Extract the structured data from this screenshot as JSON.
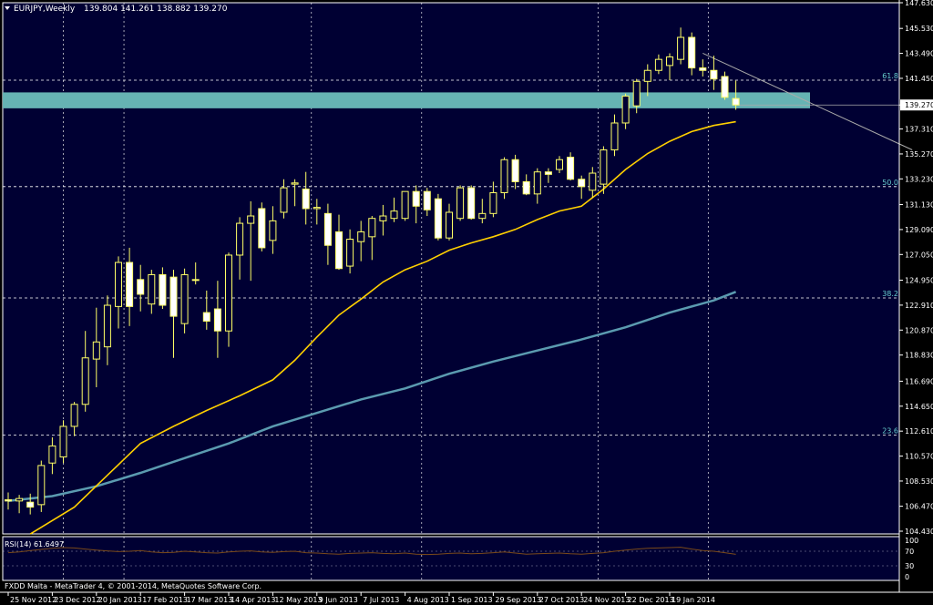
{
  "chart_header": {
    "symbol_tf": "EURJPY,Weekly",
    "ohlc": "139.804 141.261 138.882 139.270"
  },
  "colors": {
    "background": "#000033",
    "frame": "#ffffff",
    "grid": "#ffffff",
    "candle_up": "#000033",
    "candle_down": "#ffffff",
    "candle_outline": "#ffff66",
    "ma_fast": "#ffd000",
    "ma_slow": "#5b9bb0",
    "zone": "#66b3b3",
    "fib_label": "#66cccc",
    "rsi_line": "#7a4a1a",
    "price_tag_bg": "#ffffff"
  },
  "chart_data": {
    "type": "candlestick",
    "symbol": "EURJPY",
    "timeframe": "Weekly",
    "last_price": 139.27,
    "ylim": [
      104.43,
      147.63
    ],
    "y_ticks": [
      "147.630",
      "145.530",
      "143.490",
      "141.450",
      "139.270",
      "137.310",
      "135.270",
      "133.230",
      "131.130",
      "129.090",
      "127.050",
      "124.950",
      "122.910",
      "120.870",
      "118.830",
      "116.690",
      "114.650",
      "112.610",
      "110.570",
      "108.530",
      "106.470",
      "104.430"
    ],
    "x_ticks": [
      "25 Nov 2012",
      "23 Dec 2012",
      "20 Jan 2013",
      "17 Feb 2013",
      "17 Mar 2013",
      "14 Apr 2013",
      "12 May 2013",
      "9 Jun 2013",
      "7 Jul 2013",
      "4 Aug 2013",
      "1 Sep 2013",
      "29 Sep 2013",
      "27 Oct 2013",
      "24 Nov 2013",
      "22 Dec 2013",
      "19 Jan 2014"
    ],
    "candles": [
      {
        "o": 107.0,
        "h": 107.6,
        "l": 106.2,
        "c": 106.9
      },
      {
        "o": 106.9,
        "h": 107.4,
        "l": 105.9,
        "c": 107.1
      },
      {
        "o": 106.8,
        "h": 107.5,
        "l": 105.8,
        "c": 106.4
      },
      {
        "o": 106.6,
        "h": 110.2,
        "l": 106.0,
        "c": 109.8
      },
      {
        "o": 110.0,
        "h": 112.1,
        "l": 109.1,
        "c": 111.4
      },
      {
        "o": 110.5,
        "h": 113.5,
        "l": 110.0,
        "c": 113.0
      },
      {
        "o": 113.0,
        "h": 115.0,
        "l": 112.2,
        "c": 114.8
      },
      {
        "o": 114.8,
        "h": 120.8,
        "l": 114.2,
        "c": 118.6
      },
      {
        "o": 118.5,
        "h": 122.7,
        "l": 116.2,
        "c": 119.9
      },
      {
        "o": 119.5,
        "h": 123.7,
        "l": 118.0,
        "c": 122.9
      },
      {
        "o": 122.8,
        "h": 126.9,
        "l": 121.0,
        "c": 126.4
      },
      {
        "o": 126.4,
        "h": 127.6,
        "l": 121.2,
        "c": 122.8
      },
      {
        "o": 125.0,
        "h": 126.2,
        "l": 122.4,
        "c": 123.8
      },
      {
        "o": 123.0,
        "h": 125.8,
        "l": 122.2,
        "c": 125.4
      },
      {
        "o": 125.4,
        "h": 126.0,
        "l": 122.6,
        "c": 122.9
      },
      {
        "o": 125.2,
        "h": 125.8,
        "l": 118.6,
        "c": 122.0
      },
      {
        "o": 121.4,
        "h": 125.9,
        "l": 120.6,
        "c": 125.4
      },
      {
        "o": 125.0,
        "h": 126.4,
        "l": 124.6,
        "c": 125.0
      },
      {
        "o": 122.3,
        "h": 124.1,
        "l": 120.9,
        "c": 121.6
      },
      {
        "o": 122.6,
        "h": 124.9,
        "l": 118.6,
        "c": 120.8
      },
      {
        "o": 120.8,
        "h": 127.2,
        "l": 119.5,
        "c": 127.0
      },
      {
        "o": 127.0,
        "h": 130.1,
        "l": 125.0,
        "c": 129.6
      },
      {
        "o": 129.6,
        "h": 131.4,
        "l": 124.9,
        "c": 130.2
      },
      {
        "o": 130.8,
        "h": 131.3,
        "l": 127.3,
        "c": 127.6
      },
      {
        "o": 128.2,
        "h": 131.0,
        "l": 127.1,
        "c": 129.8
      },
      {
        "o": 130.5,
        "h": 133.2,
        "l": 130.0,
        "c": 132.5
      },
      {
        "o": 132.8,
        "h": 133.2,
        "l": 131.0,
        "c": 132.9
      },
      {
        "o": 132.4,
        "h": 133.8,
        "l": 129.5,
        "c": 130.8
      },
      {
        "o": 130.8,
        "h": 131.6,
        "l": 129.5,
        "c": 130.9
      },
      {
        "o": 130.4,
        "h": 131.2,
        "l": 126.2,
        "c": 127.8
      },
      {
        "o": 128.9,
        "h": 130.3,
        "l": 125.8,
        "c": 125.9
      },
      {
        "o": 126.1,
        "h": 129.1,
        "l": 125.5,
        "c": 128.3
      },
      {
        "o": 128.1,
        "h": 129.8,
        "l": 126.5,
        "c": 128.9
      },
      {
        "o": 128.5,
        "h": 130.2,
        "l": 126.6,
        "c": 130.0
      },
      {
        "o": 129.8,
        "h": 131.1,
        "l": 128.6,
        "c": 130.2
      },
      {
        "o": 130.0,
        "h": 131.7,
        "l": 129.7,
        "c": 130.6
      },
      {
        "o": 130.0,
        "h": 131.9,
        "l": 129.8,
        "c": 132.2
      },
      {
        "o": 132.2,
        "h": 132.7,
        "l": 129.6,
        "c": 131.0
      },
      {
        "o": 132.2,
        "h": 132.5,
        "l": 130.2,
        "c": 130.7
      },
      {
        "o": 131.6,
        "h": 132.0,
        "l": 128.2,
        "c": 128.4
      },
      {
        "o": 128.4,
        "h": 131.2,
        "l": 128.2,
        "c": 130.5
      },
      {
        "o": 130.0,
        "h": 132.7,
        "l": 129.8,
        "c": 132.5
      },
      {
        "o": 132.5,
        "h": 132.7,
        "l": 129.9,
        "c": 130.0
      },
      {
        "o": 130.0,
        "h": 131.6,
        "l": 129.6,
        "c": 130.4
      },
      {
        "o": 130.4,
        "h": 133.0,
        "l": 130.1,
        "c": 132.1
      },
      {
        "o": 132.1,
        "h": 135.0,
        "l": 131.6,
        "c": 134.8
      },
      {
        "o": 134.8,
        "h": 135.2,
        "l": 132.4,
        "c": 133.0
      },
      {
        "o": 133.0,
        "h": 133.6,
        "l": 131.9,
        "c": 132.0
      },
      {
        "o": 132.0,
        "h": 134.1,
        "l": 131.2,
        "c": 133.8
      },
      {
        "o": 133.8,
        "h": 134.1,
        "l": 132.9,
        "c": 133.6
      },
      {
        "o": 134.0,
        "h": 135.1,
        "l": 133.7,
        "c": 134.8
      },
      {
        "o": 135.0,
        "h": 135.4,
        "l": 133.1,
        "c": 133.2
      },
      {
        "o": 133.2,
        "h": 133.5,
        "l": 131.6,
        "c": 132.6
      },
      {
        "o": 132.3,
        "h": 134.2,
        "l": 131.7,
        "c": 133.7
      },
      {
        "o": 132.8,
        "h": 135.9,
        "l": 132.0,
        "c": 135.6
      },
      {
        "o": 135.6,
        "h": 138.5,
        "l": 135.1,
        "c": 137.8
      },
      {
        "o": 137.8,
        "h": 140.2,
        "l": 137.3,
        "c": 140.0
      },
      {
        "o": 139.2,
        "h": 141.4,
        "l": 138.6,
        "c": 141.2
      },
      {
        "o": 141.2,
        "h": 142.6,
        "l": 140.0,
        "c": 142.1
      },
      {
        "o": 142.1,
        "h": 143.4,
        "l": 141.8,
        "c": 143.0
      },
      {
        "o": 142.5,
        "h": 143.5,
        "l": 141.3,
        "c": 143.2
      },
      {
        "o": 143.0,
        "h": 145.6,
        "l": 142.6,
        "c": 144.8
      },
      {
        "o": 144.8,
        "h": 145.2,
        "l": 141.7,
        "c": 142.3
      },
      {
        "o": 142.3,
        "h": 143.0,
        "l": 141.6,
        "c": 142.1
      },
      {
        "o": 142.1,
        "h": 143.3,
        "l": 140.5,
        "c": 141.4
      },
      {
        "o": 141.6,
        "h": 142.0,
        "l": 139.7,
        "c": 139.9
      },
      {
        "o": 139.8,
        "h": 141.26,
        "l": 138.88,
        "c": 139.27
      }
    ],
    "ma_fast": [
      {
        "i": 2,
        "v": 104.2
      },
      {
        "i": 6,
        "v": 106.4
      },
      {
        "i": 9,
        "v": 109.0
      },
      {
        "i": 12,
        "v": 111.6
      },
      {
        "i": 15,
        "v": 113.0
      },
      {
        "i": 18,
        "v": 114.3
      },
      {
        "i": 21,
        "v": 115.5
      },
      {
        "i": 24,
        "v": 116.8
      },
      {
        "i": 26,
        "v": 118.4
      },
      {
        "i": 28,
        "v": 120.3
      },
      {
        "i": 30,
        "v": 122.1
      },
      {
        "i": 32,
        "v": 123.4
      },
      {
        "i": 34,
        "v": 124.8
      },
      {
        "i": 36,
        "v": 125.8
      },
      {
        "i": 38,
        "v": 126.5
      },
      {
        "i": 40,
        "v": 127.4
      },
      {
        "i": 42,
        "v": 128.0
      },
      {
        "i": 44,
        "v": 128.5
      },
      {
        "i": 46,
        "v": 129.1
      },
      {
        "i": 48,
        "v": 129.9
      },
      {
        "i": 50,
        "v": 130.6
      },
      {
        "i": 52,
        "v": 131.0
      },
      {
        "i": 54,
        "v": 132.4
      },
      {
        "i": 56,
        "v": 134.0
      },
      {
        "i": 58,
        "v": 135.3
      },
      {
        "i": 60,
        "v": 136.3
      },
      {
        "i": 62,
        "v": 137.1
      },
      {
        "i": 64,
        "v": 137.6
      },
      {
        "i": 66,
        "v": 137.9
      }
    ],
    "ma_slow": [
      {
        "i": 0,
        "v": 106.9
      },
      {
        "i": 4,
        "v": 107.3
      },
      {
        "i": 8,
        "v": 108.1
      },
      {
        "i": 12,
        "v": 109.2
      },
      {
        "i": 16,
        "v": 110.4
      },
      {
        "i": 20,
        "v": 111.6
      },
      {
        "i": 24,
        "v": 113.0
      },
      {
        "i": 28,
        "v": 114.1
      },
      {
        "i": 32,
        "v": 115.2
      },
      {
        "i": 36,
        "v": 116.1
      },
      {
        "i": 40,
        "v": 117.3
      },
      {
        "i": 44,
        "v": 118.3
      },
      {
        "i": 48,
        "v": 119.2
      },
      {
        "i": 52,
        "v": 120.1
      },
      {
        "i": 56,
        "v": 121.1
      },
      {
        "i": 60,
        "v": 122.3
      },
      {
        "i": 64,
        "v": 123.3
      },
      {
        "i": 66,
        "v": 124.0
      }
    ],
    "zone": {
      "from": 139.0,
      "to": 140.3
    },
    "trendline": [
      {
        "i": 63,
        "v": 143.5
      },
      {
        "i": 82,
        "v": 135.6
      }
    ],
    "fib_levels": [
      {
        "label": "61.8",
        "value": 141.3
      },
      {
        "label": "50.0",
        "value": 132.6
      },
      {
        "label": "38.2",
        "value": 123.5
      },
      {
        "label": "23.6",
        "value": 112.3
      }
    ],
    "vertical_grid_at": [
      5,
      10.5,
      27.5,
      37.5,
      53.5,
      63.5
    ],
    "rsi": {
      "label": "RSI(14) 61.6497",
      "levels": [
        "100",
        "70",
        "30",
        "0"
      ],
      "values": [
        66,
        68,
        72,
        75,
        78,
        80,
        79,
        76,
        73,
        71,
        69,
        70,
        72,
        68,
        66,
        67,
        70,
        68,
        66,
        65,
        68,
        70,
        71,
        68,
        67,
        69,
        70,
        66,
        65,
        63,
        62,
        64,
        65,
        66,
        64,
        63,
        65,
        62,
        61,
        62,
        64,
        65,
        63,
        64,
        66,
        68,
        65,
        62,
        63,
        64,
        65,
        63,
        62,
        64,
        66,
        70,
        73,
        76,
        78,
        79,
        80,
        81,
        76,
        72,
        70,
        66,
        61.6
      ]
    }
  },
  "footer": {
    "copyright": "FXDD Malta - MetaTrader 4, © 2001-2014, MetaQuotes Software Corp."
  }
}
